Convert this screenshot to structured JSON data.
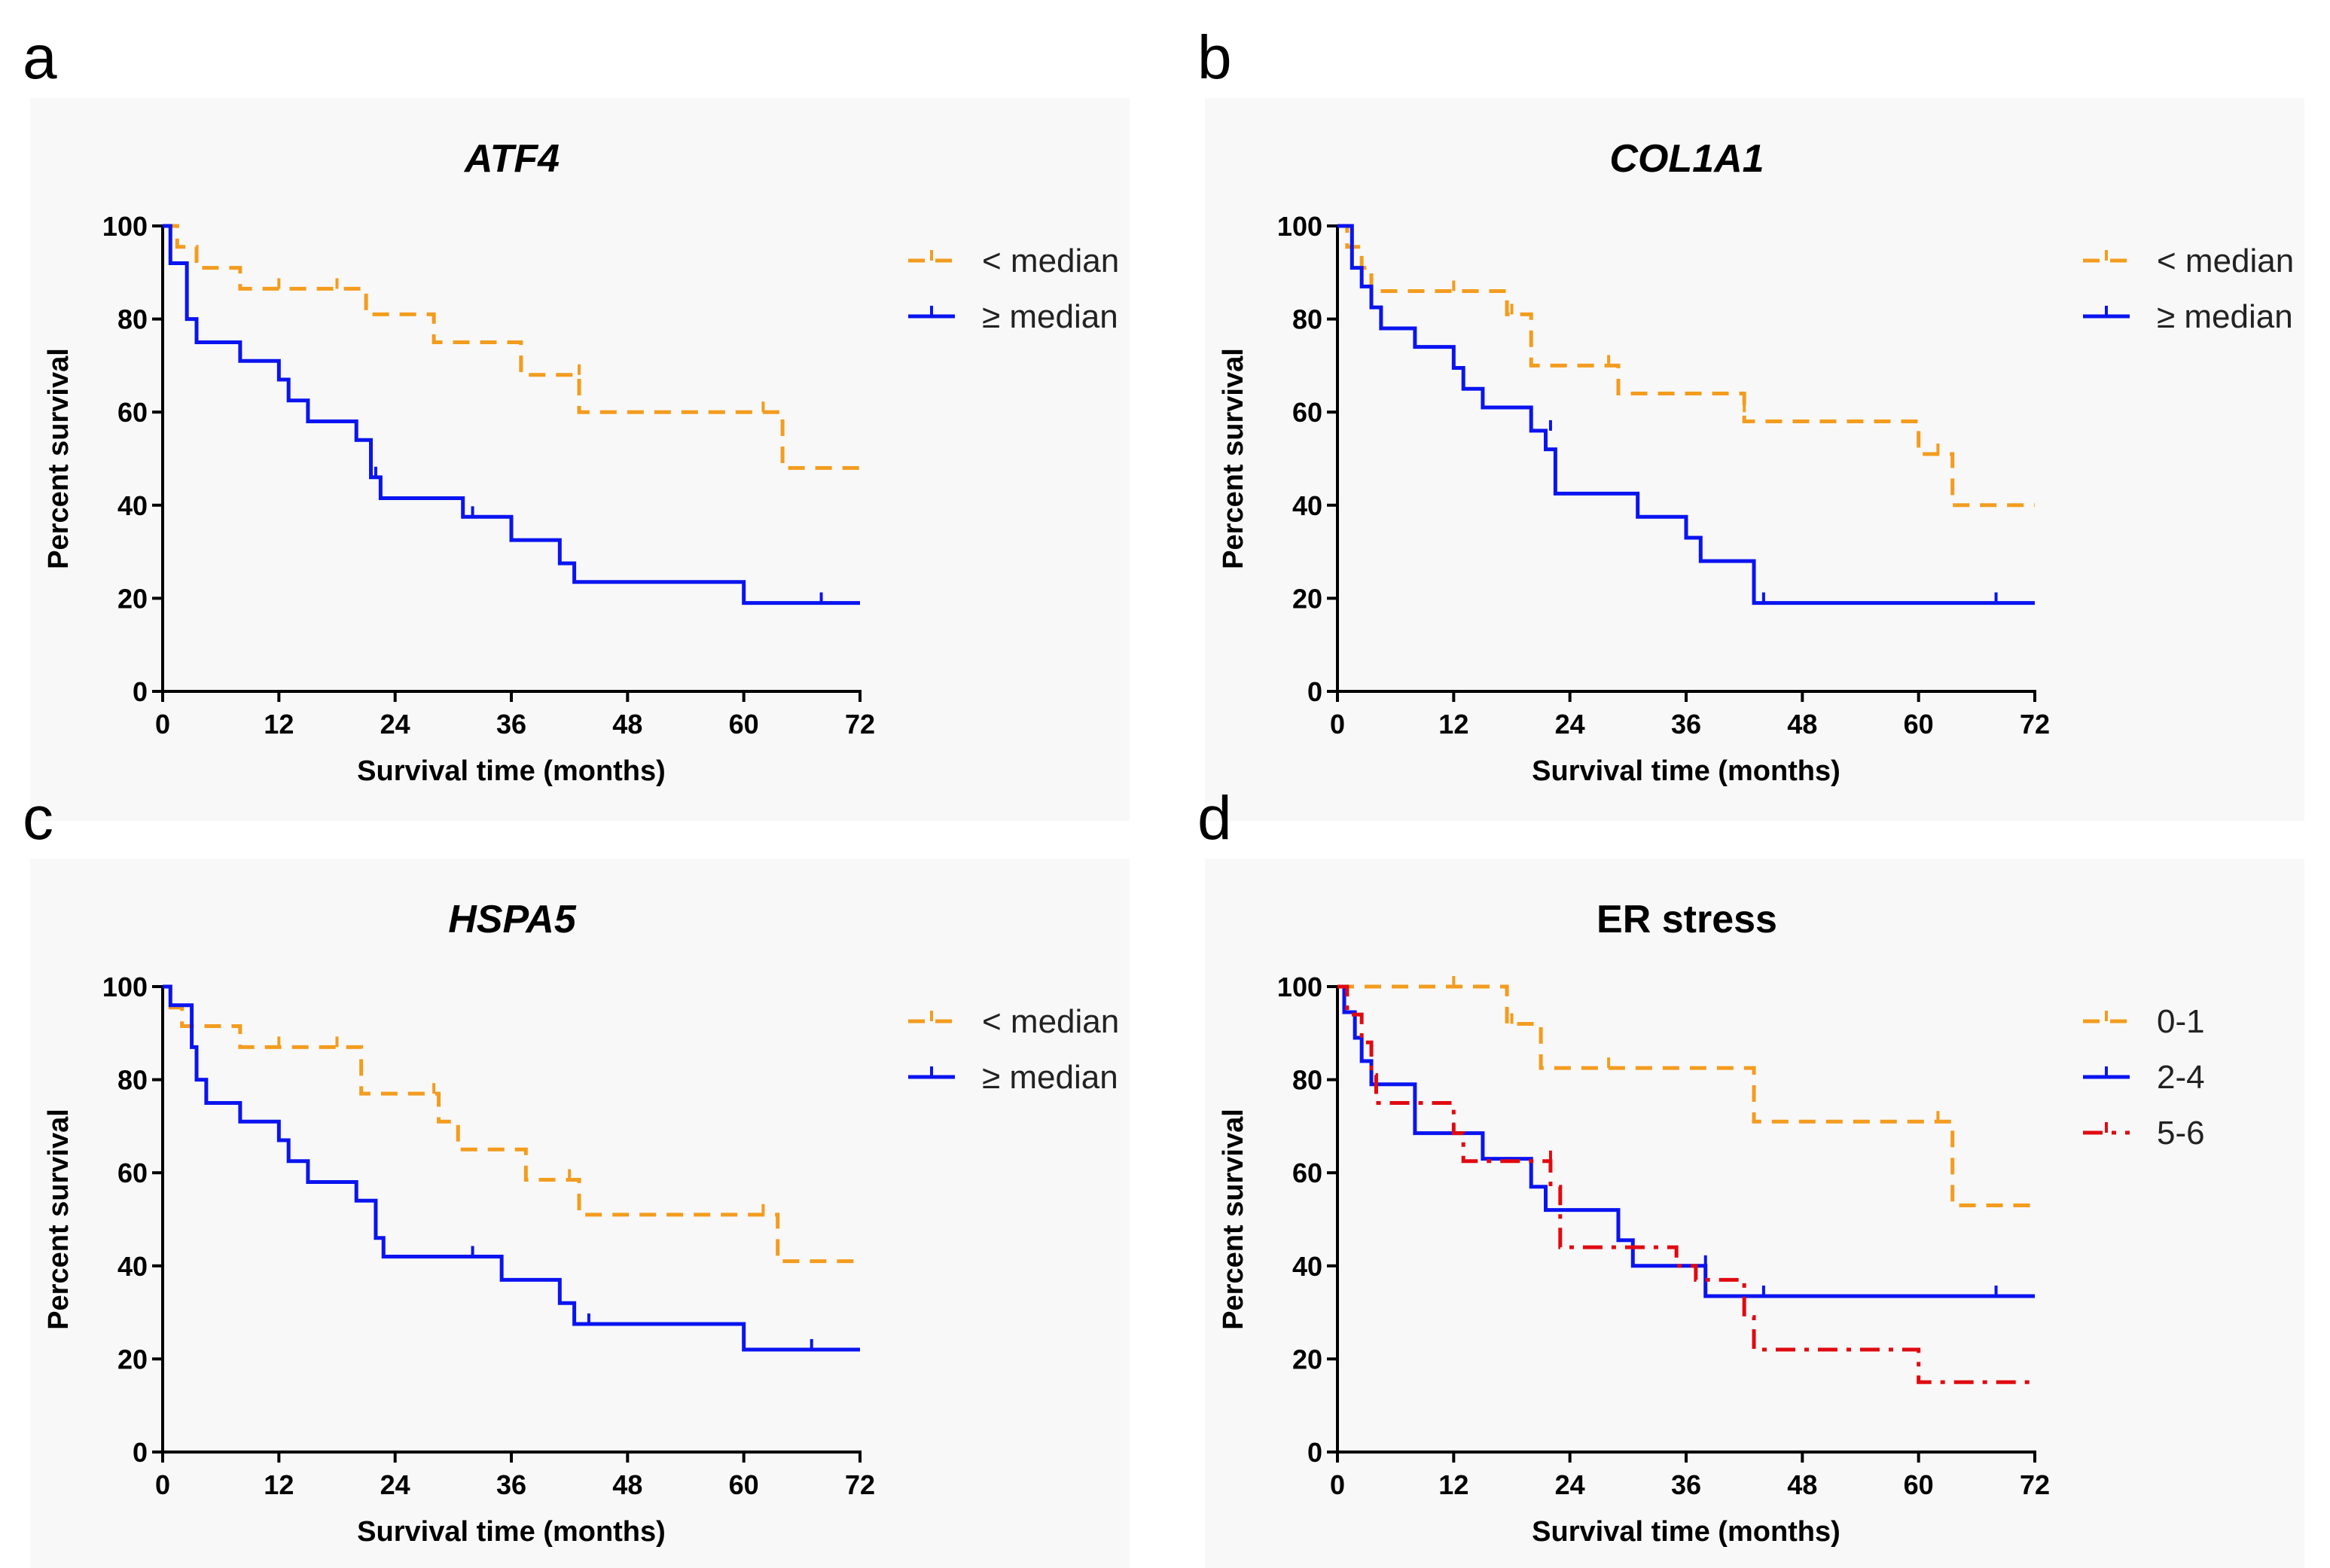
{
  "chart_data": [
    {
      "panel": "a",
      "type": "line",
      "title": "ATF4",
      "title_italic": true,
      "xlabel": "Survival time (months)",
      "ylabel": "Percent survival",
      "xlim": [
        0,
        72
      ],
      "ylim": [
        0,
        100
      ],
      "xticks": [
        "0",
        "12",
        "24",
        "36",
        "48",
        "60",
        "72"
      ],
      "yticks": [
        "0",
        "20",
        "40",
        "60",
        "80",
        "100"
      ],
      "legend_position": "top-right",
      "series": [
        {
          "name": "< median",
          "color": "#f39c1e",
          "dash": "dashed",
          "x": [
            0,
            0.8,
            1.5,
            3.5,
            8,
            21,
            28,
            37,
            43,
            64,
            72
          ],
          "y": [
            100,
            100,
            95.5,
            91,
            86.5,
            81,
            75,
            68,
            60,
            48,
            48
          ],
          "censored": [
            [
              12,
              86.5
            ],
            [
              18,
              86.5
            ],
            [
              43,
              68
            ],
            [
              62,
              60
            ]
          ]
        },
        {
          "name": "≥ median",
          "color": "#0a14f0",
          "dash": "solid",
          "x": [
            0,
            0.8,
            2.5,
            3.5,
            8,
            12,
            13,
            15,
            20,
            21.5,
            22.5,
            31,
            36,
            41,
            42.5,
            60,
            72
          ],
          "y": [
            100,
            92,
            80,
            75,
            71,
            67,
            62.5,
            58,
            54,
            46,
            41.5,
            37.5,
            32.5,
            27.5,
            23.5,
            19,
            19
          ],
          "censored": [
            [
              22,
              46
            ],
            [
              32,
              37.5
            ],
            [
              68,
              19
            ]
          ]
        }
      ]
    },
    {
      "panel": "b",
      "type": "line",
      "title": "COL1A1",
      "title_italic": true,
      "xlabel": "Survival time (months)",
      "ylabel": "Percent survival",
      "xlim": [
        0,
        72
      ],
      "ylim": [
        0,
        100
      ],
      "xticks": [
        "0",
        "12",
        "24",
        "36",
        "48",
        "60",
        "72"
      ],
      "yticks": [
        "0",
        "20",
        "40",
        "60",
        "80",
        "100"
      ],
      "legend_position": "top-right",
      "series": [
        {
          "name": "< median",
          "color": "#f39c1e",
          "dash": "dashed",
          "x": [
            0,
            1,
            2.5,
            3.5,
            17.5,
            20,
            29,
            42,
            60,
            63.5,
            72
          ],
          "y": [
            100,
            95.5,
            91,
            86,
            81,
            70,
            64,
            58,
            51,
            40,
            40
          ],
          "censored": [
            [
              12,
              86
            ],
            [
              18,
              81
            ],
            [
              28,
              70
            ],
            [
              42,
              60
            ],
            [
              62,
              51
            ]
          ]
        },
        {
          "name": "≥ median",
          "color": "#0a14f0",
          "dash": "solid",
          "x": [
            0,
            1.5,
            2.5,
            3.5,
            4.5,
            8,
            12,
            13,
            15,
            20,
            21.5,
            22.5,
            31,
            36,
            37.5,
            43,
            72
          ],
          "y": [
            100,
            91,
            87,
            82.5,
            78,
            74,
            69.5,
            65,
            61,
            56,
            52,
            42.5,
            37.5,
            33,
            28,
            19,
            19
          ],
          "censored": [
            [
              22,
              56
            ],
            [
              44,
              19
            ],
            [
              68,
              19
            ]
          ]
        }
      ]
    },
    {
      "panel": "c",
      "type": "line",
      "title": "HSPA5",
      "title_italic": true,
      "xlabel": "Survival time (months)",
      "ylabel": "Percent survival",
      "xlim": [
        0,
        72
      ],
      "ylim": [
        0,
        100
      ],
      "xticks": [
        "0",
        "12",
        "24",
        "36",
        "48",
        "60",
        "72"
      ],
      "yticks": [
        "0",
        "20",
        "40",
        "60",
        "80",
        "100"
      ],
      "legend_position": "top-right",
      "series": [
        {
          "name": "< median",
          "color": "#f39c1e",
          "dash": "dashed",
          "x": [
            0,
            0.8,
            2,
            8,
            20.5,
            28.5,
            30.5,
            37.5,
            43,
            63.5,
            72
          ],
          "y": [
            100,
            95.5,
            91.5,
            87,
            77,
            71,
            65,
            58.5,
            51,
            41,
            41
          ],
          "censored": [
            [
              12,
              87
            ],
            [
              18,
              87
            ],
            [
              28,
              77
            ],
            [
              42,
              58.5
            ],
            [
              62,
              51
            ]
          ]
        },
        {
          "name": "≥ median",
          "color": "#0a14f0",
          "dash": "solid",
          "x": [
            0,
            0.8,
            3,
            3.5,
            4.5,
            8,
            12,
            13,
            15,
            20,
            22,
            22.8,
            35,
            41,
            42.5,
            60,
            72
          ],
          "y": [
            100,
            96,
            87,
            80,
            75,
            71,
            67,
            62.5,
            58,
            54,
            46,
            42,
            37,
            32,
            27.5,
            22,
            22
          ],
          "censored": [
            [
              32,
              42
            ],
            [
              44,
              27.5
            ],
            [
              67,
              22
            ]
          ]
        }
      ]
    },
    {
      "panel": "d",
      "type": "line",
      "title": "ER stress",
      "title_italic": false,
      "xlabel": "Survival time (months)",
      "ylabel": "Percent survival",
      "xlim": [
        0,
        72
      ],
      "ylim": [
        0,
        100
      ],
      "xticks": [
        "0",
        "12",
        "24",
        "36",
        "48",
        "60",
        "72"
      ],
      "yticks": [
        "0",
        "20",
        "40",
        "60",
        "80",
        "100"
      ],
      "legend_position": "top-right",
      "series": [
        {
          "name": "0-1",
          "color": "#f39c1e",
          "dash": "dashed",
          "x": [
            0,
            17.5,
            21,
            43,
            63.5,
            72
          ],
          "y": [
            100,
            92,
            82.5,
            71,
            53,
            53
          ],
          "censored": [
            [
              12,
              100
            ],
            [
              18,
              92
            ],
            [
              28,
              82.5
            ],
            [
              62,
              71
            ]
          ]
        },
        {
          "name": "2-4",
          "color": "#0a14f0",
          "dash": "solid",
          "x": [
            0,
            0.7,
            1.8,
            2.5,
            3.5,
            4.5,
            8,
            15,
            20,
            21.5,
            22.5,
            29,
            30.5,
            38,
            72
          ],
          "y": [
            100,
            94.5,
            89,
            84,
            79,
            79,
            68.5,
            63,
            57,
            52,
            52,
            45.5,
            40,
            33.5,
            33.5
          ],
          "censored": [
            [
              12,
              68.5
            ],
            [
              38,
              40
            ],
            [
              44,
              33.5
            ],
            [
              68,
              33.5
            ]
          ]
        },
        {
          "name": "5-6",
          "color": "#e00a10",
          "dash": "dashdot",
          "x": [
            0,
            1,
            2.5,
            3.5,
            4,
            12,
            13,
            22,
            23,
            35,
            37,
            42,
            43,
            60,
            72
          ],
          "y": [
            100,
            94,
            88,
            81,
            75,
            68.5,
            62.5,
            57,
            44,
            40,
            37,
            29,
            22,
            15,
            15
          ],
          "censored": [
            [
              12,
              68.5
            ],
            [
              22,
              62.5
            ]
          ]
        }
      ]
    }
  ]
}
